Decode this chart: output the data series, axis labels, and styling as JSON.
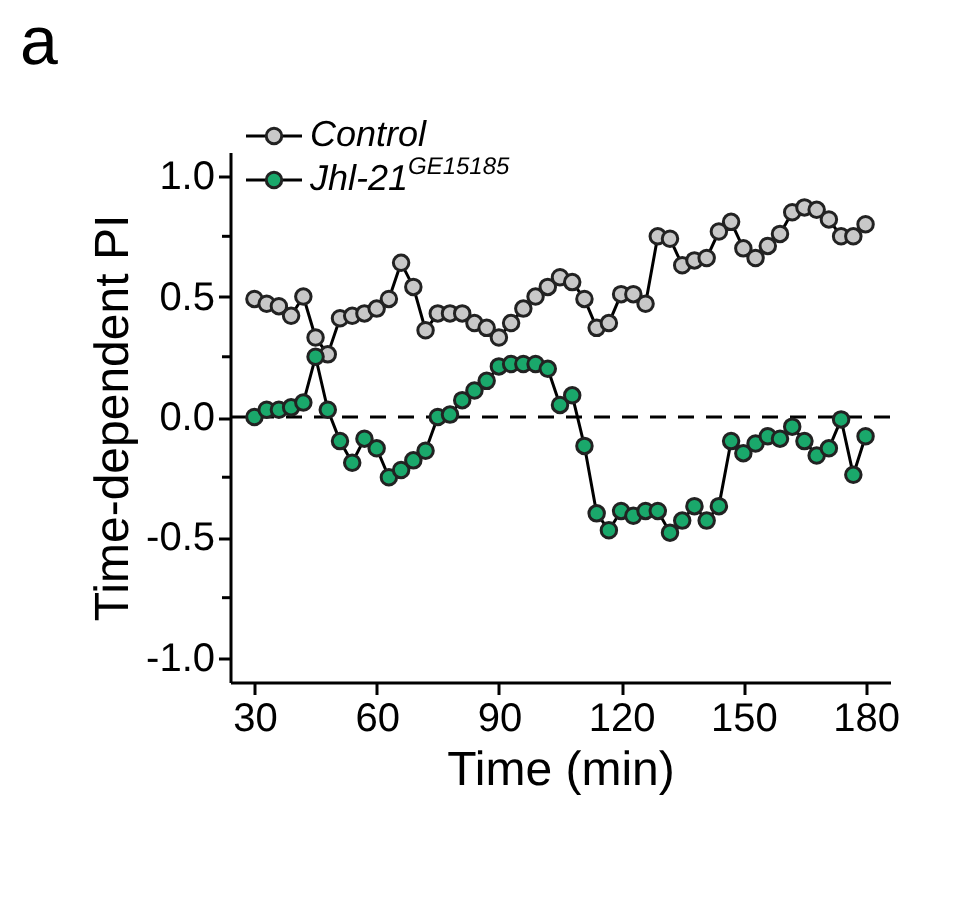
{
  "chart_data": {
    "type": "line",
    "title": "a",
    "xlabel": "Time (min)",
    "ylabel": "Time-dependent PI",
    "x": [
      30,
      33,
      36,
      39,
      42,
      45,
      48,
      51,
      54,
      57,
      60,
      63,
      66,
      69,
      72,
      75,
      78,
      81,
      84,
      87,
      90,
      93,
      96,
      99,
      102,
      105,
      108,
      111,
      114,
      117,
      120,
      123,
      126,
      129,
      132,
      135,
      138,
      141,
      144,
      147,
      150,
      153,
      156,
      159,
      162,
      165,
      168,
      171,
      174,
      177,
      180
    ],
    "series": [
      {
        "name": "Control",
        "color": "#c8c8c8",
        "values": [
          0.49,
          0.47,
          0.46,
          0.42,
          0.5,
          0.33,
          0.26,
          0.41,
          0.42,
          0.43,
          0.45,
          0.49,
          0.64,
          0.54,
          0.36,
          0.43,
          0.43,
          0.43,
          0.39,
          0.37,
          0.33,
          0.39,
          0.45,
          0.5,
          0.54,
          0.58,
          0.56,
          0.49,
          0.37,
          0.39,
          0.51,
          0.51,
          0.47,
          0.75,
          0.74,
          0.63,
          0.65,
          0.66,
          0.77,
          0.81,
          0.7,
          0.66,
          0.71,
          0.76,
          0.85,
          0.87,
          0.86,
          0.82,
          0.75,
          0.75,
          0.8
        ]
      },
      {
        "name": "Jhl-21$^{GE15185}$",
        "color": "#1aa86b",
        "values": [
          0.0,
          0.03,
          0.03,
          0.04,
          0.06,
          0.25,
          0.03,
          -0.1,
          -0.19,
          -0.09,
          -0.13,
          -0.25,
          -0.22,
          -0.18,
          -0.14,
          0.0,
          0.01,
          0.07,
          0.11,
          0.15,
          0.21,
          0.22,
          0.22,
          0.22,
          0.2,
          0.05,
          0.09,
          -0.12,
          -0.4,
          -0.47,
          -0.39,
          -0.41,
          -0.39,
          -0.39,
          -0.48,
          -0.43,
          -0.37,
          -0.43,
          -0.37,
          -0.1,
          -0.15,
          -0.11,
          -0.08,
          -0.09,
          -0.04,
          -0.1,
          -0.16,
          -0.13,
          -0.01,
          -0.24,
          -0.08
        ]
      }
    ],
    "xlim": [
      24,
      186
    ],
    "xticks": [
      30,
      60,
      90,
      120,
      150,
      180
    ],
    "ylim": [
      -1.1,
      1.1
    ],
    "yticks": [
      {
        "value": -1,
        "label": "-1.0"
      },
      {
        "value": -0.75,
        "label": null
      },
      {
        "value": -0.5,
        "label": "-0.5"
      },
      {
        "value": -0.25,
        "label": null
      },
      {
        "value": 0,
        "label": "0.0"
      },
      {
        "value": 0.25,
        "label": null
      },
      {
        "value": 0.5,
        "label": "0.5"
      },
      {
        "value": 0.75,
        "label": null
      },
      {
        "value": 1,
        "label": "1.0"
      }
    ],
    "ref_lines": [
      {
        "axis": "y",
        "value": 0,
        "line_style": "dashed",
        "color": "#000000"
      }
    ],
    "legend": "top left",
    "marker": "circle",
    "line_style": "solid",
    "grid": false
  }
}
